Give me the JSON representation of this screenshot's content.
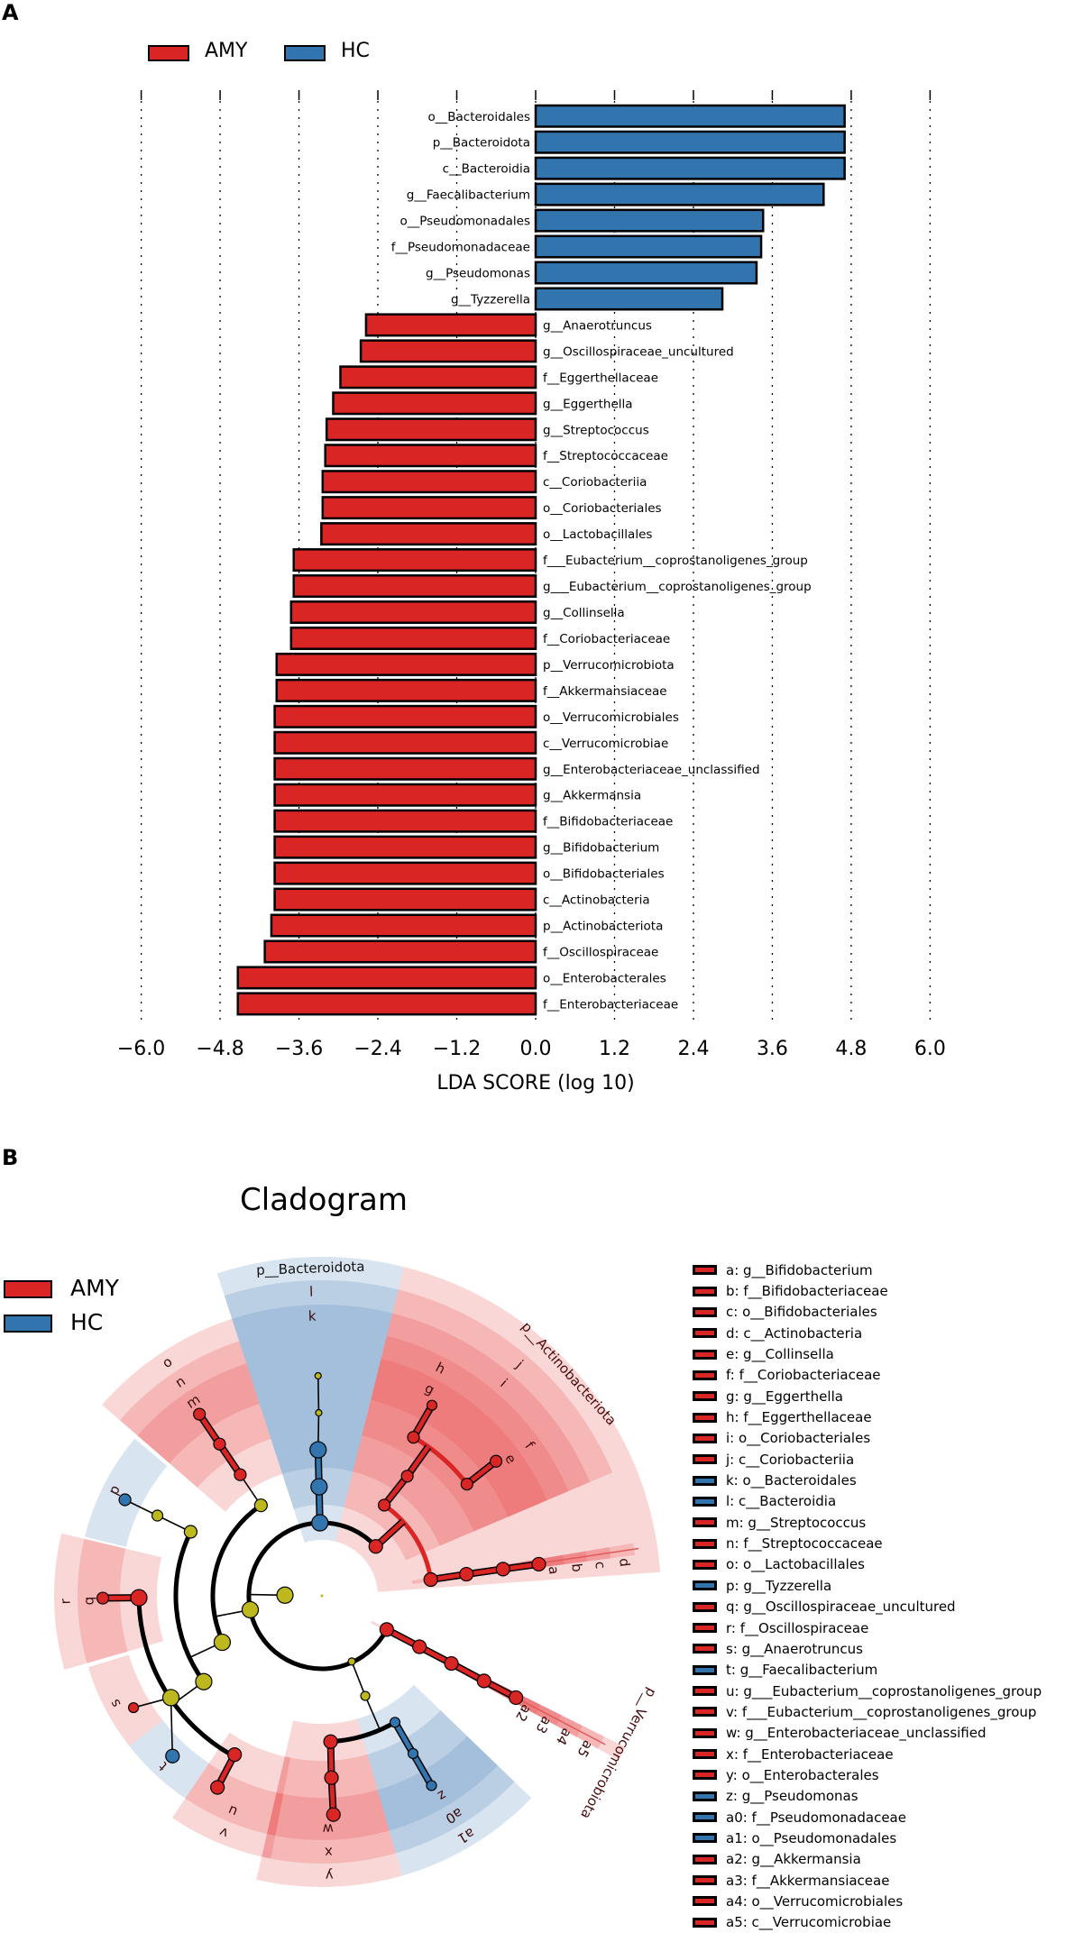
{
  "panel_a": {
    "label": "A"
  },
  "panel_b": {
    "label": "B"
  },
  "colors": {
    "AMY": "#d92523",
    "HC": "#3274ae",
    "node": "#bdb81e"
  },
  "chart_data": [
    {
      "type": "bar",
      "orientation": "horizontal",
      "xlabel": "LDA SCORE (log 10)",
      "xlim": [
        -6.0,
        6.0
      ],
      "xticks": [
        -6.0,
        -4.8,
        -3.6,
        -2.4,
        -1.2,
        0.0,
        1.2,
        2.4,
        3.6,
        4.8,
        6.0
      ],
      "xtick_labels": [
        "−6.0",
        "−4.8",
        "−3.6",
        "−2.4",
        "−1.2",
        "0.0",
        "1.2",
        "2.4",
        "3.6",
        "4.8",
        "6.0"
      ],
      "grid": true,
      "legend_placement": "top-left",
      "legend": [
        {
          "name": "AMY"
        },
        {
          "name": "HC"
        }
      ],
      "categories": [
        "o__Bacteroidales",
        "p__Bacteroidota",
        "c__Bacteroidia",
        "g__Faecalibacterium",
        "o__Pseudomonadales",
        "f__Pseudomonadaceae",
        "g__Pseudomonas",
        "g__Tyzzerella",
        "g__Anaerotruncus",
        "g__Oscillospiraceae_uncultured",
        "f__Eggerthellaceae",
        "g__Eggerthella",
        "g__Streptococcus",
        "f__Streptococcaceae",
        "c__Coriobacteriia",
        "o__Coriobacteriales",
        "o__Lactobacillales",
        "f___Eubacterium__coprostanoligenes_group",
        "g___Eubacterium__coprostanoligenes_group",
        "g__Collinsella",
        "f__Coriobacteriaceae",
        "p__Verrucomicrobiota",
        "f__Akkermansiaceae",
        "o__Verrucomicrobiales",
        "c__Verrucomicrobiae",
        "g__Enterobacteriaceae_unclassified",
        "g__Akkermansia",
        "f__Bifidobacteriaceae",
        "g__Bifidobacterium",
        "o__Bifidobacteriales",
        "c__Actinobacteria",
        "p__Actinobacteriota",
        "f__Oscillospiraceae",
        "o__Enterobacterales",
        "f__Enterobacteriaceae"
      ],
      "values": [
        4.7,
        4.7,
        4.7,
        4.38,
        3.46,
        3.43,
        3.36,
        2.84,
        -2.58,
        -2.66,
        -2.97,
        -3.08,
        -3.18,
        -3.2,
        -3.24,
        -3.24,
        -3.26,
        -3.68,
        -3.68,
        -3.72,
        -3.72,
        -3.94,
        -3.94,
        -3.97,
        -3.97,
        -3.97,
        -3.97,
        -3.97,
        -3.97,
        -3.97,
        -3.97,
        -4.02,
        -4.12,
        -4.53,
        -4.53
      ],
      "groups": [
        "HC",
        "HC",
        "HC",
        "HC",
        "HC",
        "HC",
        "HC",
        "HC",
        "AMY",
        "AMY",
        "AMY",
        "AMY",
        "AMY",
        "AMY",
        "AMY",
        "AMY",
        "AMY",
        "AMY",
        "AMY",
        "AMY",
        "AMY",
        "AMY",
        "AMY",
        "AMY",
        "AMY",
        "AMY",
        "AMY",
        "AMY",
        "AMY",
        "AMY",
        "AMY",
        "AMY",
        "AMY",
        "AMY",
        "AMY"
      ]
    }
  ],
  "cladogram": {
    "title": "Cladogram",
    "legend": [
      {
        "name": "AMY"
      },
      {
        "name": "HC"
      }
    ],
    "phylum_labels": [
      "p__Bacteroidota",
      "p__Actinobacteriota",
      "p__Verrucomicrobiota"
    ],
    "entries": [
      {
        "key": "a",
        "name": "g__Bifidobacterium",
        "group": "AMY"
      },
      {
        "key": "b",
        "name": "f__Bifidobacteriaceae",
        "group": "AMY"
      },
      {
        "key": "c",
        "name": "o__Bifidobacteriales",
        "group": "AMY"
      },
      {
        "key": "d",
        "name": "c__Actinobacteria",
        "group": "AMY"
      },
      {
        "key": "e",
        "name": "g__Collinsella",
        "group": "AMY"
      },
      {
        "key": "f",
        "name": "f__Coriobacteriaceae",
        "group": "AMY"
      },
      {
        "key": "g",
        "name": "g__Eggerthella",
        "group": "AMY"
      },
      {
        "key": "h",
        "name": "f__Eggerthellaceae",
        "group": "AMY"
      },
      {
        "key": "i",
        "name": "o__Coriobacteriales",
        "group": "AMY"
      },
      {
        "key": "j",
        "name": "c__Coriobacteriia",
        "group": "AMY"
      },
      {
        "key": "k",
        "name": "o__Bacteroidales",
        "group": "HC"
      },
      {
        "key": "l",
        "name": "c__Bacteroidia",
        "group": "HC"
      },
      {
        "key": "m",
        "name": "g__Streptococcus",
        "group": "AMY"
      },
      {
        "key": "n",
        "name": "f__Streptococcaceae",
        "group": "AMY"
      },
      {
        "key": "o",
        "name": "o__Lactobacillales",
        "group": "AMY"
      },
      {
        "key": "p",
        "name": "g__Tyzzerella",
        "group": "HC"
      },
      {
        "key": "q",
        "name": "g__Oscillospiraceae_uncultured",
        "group": "AMY"
      },
      {
        "key": "r",
        "name": "f__Oscillospiraceae",
        "group": "AMY"
      },
      {
        "key": "s",
        "name": "g__Anaerotruncus",
        "group": "AMY"
      },
      {
        "key": "t",
        "name": "g__Faecalibacterium",
        "group": "HC"
      },
      {
        "key": "u",
        "name": "g___Eubacterium__coprostanoligenes_group",
        "group": "AMY"
      },
      {
        "key": "v",
        "name": "f___Eubacterium__coprostanoligenes_group",
        "group": "AMY"
      },
      {
        "key": "w",
        "name": "g__Enterobacteriaceae_unclassified",
        "group": "AMY"
      },
      {
        "key": "x",
        "name": "f__Enterobacteriaceae",
        "group": "AMY"
      },
      {
        "key": "y",
        "name": "o__Enterobacterales",
        "group": "AMY"
      },
      {
        "key": "z",
        "name": "g__Pseudomonas",
        "group": "HC"
      },
      {
        "key": "a0",
        "name": "f__Pseudomonadaceae",
        "group": "HC"
      },
      {
        "key": "a1",
        "name": "o__Pseudomonadales",
        "group": "HC"
      },
      {
        "key": "a2",
        "name": "g__Akkermansia",
        "group": "AMY"
      },
      {
        "key": "a3",
        "name": "f__Akkermansiaceae",
        "group": "AMY"
      },
      {
        "key": "a4",
        "name": "o__Verrucomicrobiales",
        "group": "AMY"
      },
      {
        "key": "a5",
        "name": "c__Verrucomicrobiae",
        "group": "AMY"
      }
    ]
  }
}
